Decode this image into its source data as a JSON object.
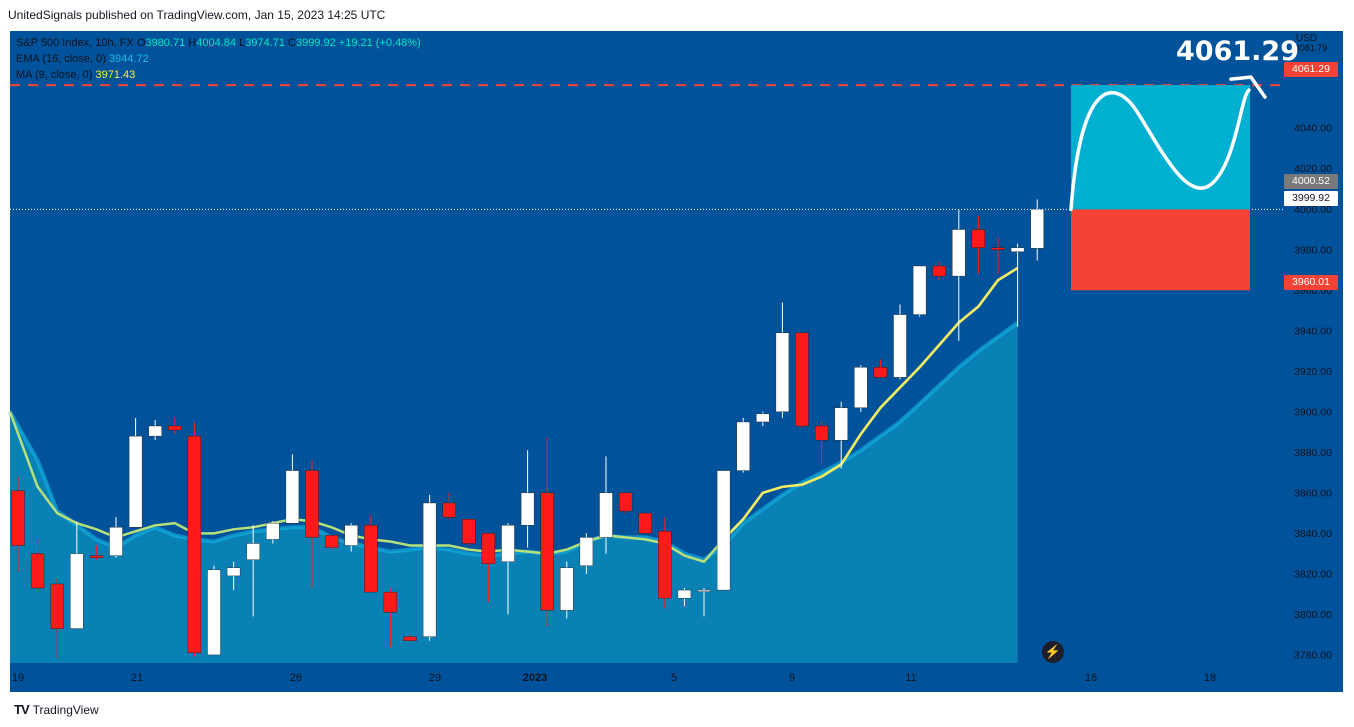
{
  "header": {
    "published_text": "UnitedSignals published on TradingView.com, Jan 15, 2023 14:25 UTC"
  },
  "legend": {
    "symbol_line_prefix": "S&P 500 Index, 10h, FX",
    "o_label": "O",
    "o_value": "3980.71",
    "h_label": "H",
    "h_value": "4004.84",
    "l_label": "L",
    "l_value": "3974.71",
    "c_label": "C",
    "c_value": "3999.92",
    "change": "+19.21 (+0.48%)",
    "ema_label": "EMA (16, close, 0)",
    "ema_value": "3944.72",
    "ma_label": "MA (9, close, 0)",
    "ma_value": "3971.43"
  },
  "axis": {
    "currency": "USD",
    "top_partial_tick": "4081.79"
  },
  "tags": {
    "target": "4061.29",
    "stop": "3960.01",
    "prior_close": "4000.52",
    "last_price": "3999.92"
  },
  "big_target_label": "4061.29",
  "footer": {
    "brand": "TradingView",
    "logo": "TV"
  },
  "colors": {
    "background": "#00539a",
    "bull_candle": "#ffffff",
    "bear_candle": "#ff1a1a",
    "ema": "#16b8e8",
    "ma": "#f5ec62",
    "target_zone": "#00b0d0",
    "stop_zone": "#f44336",
    "dashed_line": "#f44336"
  },
  "chart_data": {
    "type": "candlestick",
    "ylim": [
      3776,
      4088
    ],
    "y_ticks": [
      "3780.00",
      "3800.00",
      "3820.00",
      "3840.00",
      "3860.00",
      "3880.00",
      "3900.00",
      "3920.00",
      "3940.00",
      "3960.00",
      "3980.00",
      "4000.00",
      "4020.00",
      "4040.00"
    ],
    "x_ticks": [
      "19",
      "21",
      "26",
      "29",
      "2023",
      "5",
      "9",
      "11",
      "16",
      "18"
    ],
    "candles": [
      {
        "o": 3861,
        "h": 3868,
        "l": 3821,
        "c": 3834
      },
      {
        "o": 3830,
        "h": 3838,
        "l": 3811,
        "c": 3813
      },
      {
        "o": 3815,
        "h": 3818,
        "l": 3779,
        "c": 3793
      },
      {
        "o": 3793,
        "h": 3846,
        "l": 3793,
        "c": 3830
      },
      {
        "o": 3829,
        "h": 3834,
        "l": 3827,
        "c": 3828
      },
      {
        "o": 3829,
        "h": 3848,
        "l": 3828,
        "c": 3843
      },
      {
        "o": 3843,
        "h": 3897,
        "l": 3843,
        "c": 3888
      },
      {
        "o": 3888,
        "h": 3896,
        "l": 3886,
        "c": 3893
      },
      {
        "o": 3893,
        "h": 3897,
        "l": 3889,
        "c": 3891
      },
      {
        "o": 3888,
        "h": 3895,
        "l": 3779,
        "c": 3781
      },
      {
        "o": 3780,
        "h": 3824,
        "l": 3780,
        "c": 3822
      },
      {
        "o": 3819,
        "h": 3826,
        "l": 3812,
        "c": 3823
      },
      {
        "o": 3827,
        "h": 3844,
        "l": 3799,
        "c": 3835
      },
      {
        "o": 3837,
        "h": 3846,
        "l": 3835,
        "c": 3845
      },
      {
        "o": 3845,
        "h": 3879,
        "l": 3845,
        "c": 3871
      },
      {
        "o": 3871,
        "h": 3876,
        "l": 3813,
        "c": 3838
      },
      {
        "o": 3839,
        "h": 3839,
        "l": 3832,
        "c": 3833
      },
      {
        "o": 3834,
        "h": 3845,
        "l": 3831,
        "c": 3844
      },
      {
        "o": 3844,
        "h": 3849,
        "l": 3811,
        "c": 3811
      },
      {
        "o": 3811,
        "h": 3813,
        "l": 3784,
        "c": 3801
      },
      {
        "o": 3789,
        "h": 3790,
        "l": 3787,
        "c": 3787
      },
      {
        "o": 3789,
        "h": 3859,
        "l": 3787,
        "c": 3855
      },
      {
        "o": 3855,
        "h": 3860,
        "l": 3847,
        "c": 3848
      },
      {
        "o": 3847,
        "h": 3847,
        "l": 3834,
        "c": 3835
      },
      {
        "o": 3840,
        "h": 3840,
        "l": 3806,
        "c": 3825
      },
      {
        "o": 3826,
        "h": 3845,
        "l": 3800,
        "c": 3844
      },
      {
        "o": 3844,
        "h": 3881,
        "l": 3833,
        "c": 3860
      },
      {
        "o": 3860,
        "h": 3887,
        "l": 3794,
        "c": 3802
      },
      {
        "o": 3802,
        "h": 3826,
        "l": 3798,
        "c": 3823
      },
      {
        "o": 3824,
        "h": 3840,
        "l": 3820,
        "c": 3838
      },
      {
        "o": 3838,
        "h": 3878,
        "l": 3830,
        "c": 3860
      },
      {
        "o": 3860,
        "h": 3860,
        "l": 3850,
        "c": 3851
      },
      {
        "o": 3850,
        "h": 3850,
        "l": 3840,
        "c": 3840
      },
      {
        "o": 3841,
        "h": 3848,
        "l": 3803,
        "c": 3808
      },
      {
        "o": 3808,
        "h": 3813,
        "l": 3804,
        "c": 3812
      },
      {
        "o": 3812,
        "h": 3813,
        "l": 3799,
        "c": 3812
      },
      {
        "o": 3812,
        "h": 3871,
        "l": 3812,
        "c": 3871
      },
      {
        "o": 3871,
        "h": 3897,
        "l": 3870,
        "c": 3895
      },
      {
        "o": 3895,
        "h": 3900,
        "l": 3893,
        "c": 3899
      },
      {
        "o": 3900,
        "h": 3954,
        "l": 3897,
        "c": 3939
      },
      {
        "o": 3939,
        "h": 3939,
        "l": 3892,
        "c": 3893
      },
      {
        "o": 3893,
        "h": 3895,
        "l": 3874,
        "c": 3886
      },
      {
        "o": 3886,
        "h": 3905,
        "l": 3872,
        "c": 3902
      },
      {
        "o": 3902,
        "h": 3923,
        "l": 3900,
        "c": 3922
      },
      {
        "o": 3922,
        "h": 3926,
        "l": 3918,
        "c": 3917
      },
      {
        "o": 3917,
        "h": 3953,
        "l": 3916,
        "c": 3948
      },
      {
        "o": 3948,
        "h": 3972,
        "l": 3947,
        "c": 3972
      },
      {
        "o": 3972,
        "h": 3974,
        "l": 3965,
        "c": 3967
      },
      {
        "o": 3967,
        "h": 4000,
        "l": 3935,
        "c": 3990
      },
      {
        "o": 3990,
        "h": 3997,
        "l": 3968,
        "c": 3981
      },
      {
        "o": 3981,
        "h": 3986,
        "l": 3968,
        "c": 3980
      },
      {
        "o": 3979,
        "h": 3983,
        "l": 3942,
        "c": 3981
      },
      {
        "o": 3980.71,
        "h": 4004.84,
        "l": 3974.71,
        "c": 3999.92
      }
    ],
    "ema": [
      3900,
      3876,
      3851,
      3844,
      3837,
      3833,
      3839,
      3843,
      3839,
      3837,
      3836,
      3839,
      3841,
      3842,
      3843,
      3843,
      3838,
      3835,
      3833,
      3831,
      3832,
      3833,
      3832,
      3830,
      3829,
      3830,
      3831,
      3830,
      3831,
      3836,
      3839,
      3838,
      3838,
      3836,
      3830,
      3827,
      3834,
      3845,
      3852,
      3859,
      3865,
      3870,
      3875,
      3881,
      3888,
      3895,
      3904,
      3913,
      3922,
      3930,
      3937,
      3944
    ],
    "ma": [
      3900,
      3863,
      3850,
      3845,
      3842,
      3838,
      3841,
      3844,
      3845,
      3840,
      3840,
      3842,
      3843,
      3845,
      3847,
      3846,
      3843,
      3839,
      3837,
      3836,
      3834,
      3834,
      3834,
      3832,
      3831,
      3832,
      3831,
      3830,
      3832,
      3836,
      3839,
      3838,
      3837,
      3835,
      3829,
      3826,
      3837,
      3847,
      3860,
      3863,
      3864,
      3868,
      3874,
      3889,
      3902,
      3912,
      3922,
      3933,
      3944,
      3952,
      3965,
      3971
    ],
    "target": 4061.29,
    "stop": 3960.01,
    "entry": 3999.92
  }
}
